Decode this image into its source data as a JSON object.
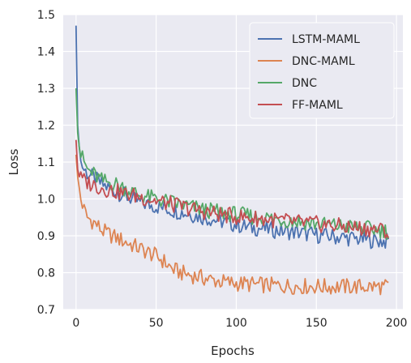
{
  "chart_data": {
    "type": "line",
    "xlabel": "Epochs",
    "ylabel": "Loss",
    "xlim": [
      -8,
      204
    ],
    "ylim": [
      0.7,
      1.5
    ],
    "xticks": [
      "0",
      "50",
      "100",
      "150",
      "200"
    ],
    "yticks": [
      "0.7",
      "0.8",
      "0.9",
      "1.0",
      "1.1",
      "1.2",
      "1.3",
      "1.4",
      "1.5"
    ],
    "grid": true,
    "legend_position": "top-right",
    "series": [
      {
        "name": "LSTM-MAML",
        "color": "#4c72b0",
        "x": [
          0,
          1,
          2,
          3,
          5,
          7,
          10,
          13,
          16,
          20,
          25,
          30,
          35,
          40,
          45,
          50,
          55,
          60,
          65,
          70,
          75,
          80,
          85,
          90,
          95,
          100,
          105,
          110,
          115,
          120,
          125,
          130,
          135,
          140,
          145,
          150,
          155,
          160,
          165,
          170,
          175,
          180,
          185,
          190,
          193,
          195
        ],
        "y": [
          1.47,
          1.2,
          1.14,
          1.1,
          1.08,
          1.07,
          1.06,
          1.05,
          1.04,
          1.03,
          1.02,
          1.01,
          1.0,
          0.99,
          0.985,
          0.98,
          0.975,
          0.97,
          0.965,
          0.96,
          0.955,
          0.95,
          0.945,
          0.94,
          0.935,
          0.93,
          0.925,
          0.922,
          0.92,
          0.918,
          0.915,
          0.912,
          0.91,
          0.908,
          0.905,
          0.902,
          0.9,
          0.898,
          0.896,
          0.894,
          0.892,
          0.89,
          0.888,
          0.886,
          0.885,
          0.885
        ]
      },
      {
        "name": "DNC-MAML",
        "color": "#dd8452",
        "x": [
          0,
          1,
          2,
          3,
          5,
          7,
          10,
          13,
          16,
          20,
          25,
          30,
          35,
          40,
          45,
          50,
          55,
          60,
          65,
          70,
          75,
          80,
          85,
          90,
          95,
          100,
          105,
          110,
          115,
          120,
          125,
          130,
          135,
          140,
          145,
          150,
          155,
          160,
          165,
          170,
          175,
          180,
          185,
          190,
          193,
          195
        ],
        "y": [
          1.12,
          1.06,
          1.03,
          1.0,
          0.97,
          0.95,
          0.94,
          0.93,
          0.915,
          0.905,
          0.895,
          0.885,
          0.875,
          0.865,
          0.855,
          0.845,
          0.83,
          0.81,
          0.8,
          0.795,
          0.79,
          0.785,
          0.78,
          0.776,
          0.773,
          0.771,
          0.77,
          0.768,
          0.767,
          0.766,
          0.765,
          0.764,
          0.764,
          0.763,
          0.763,
          0.763,
          0.762,
          0.762,
          0.762,
          0.762,
          0.762,
          0.762,
          0.762,
          0.762,
          0.761,
          0.76
        ]
      },
      {
        "name": "DNC",
        "color": "#55a868",
        "x": [
          0,
          1,
          2,
          3,
          5,
          7,
          10,
          13,
          16,
          20,
          25,
          30,
          35,
          40,
          45,
          50,
          55,
          60,
          65,
          70,
          75,
          80,
          85,
          90,
          95,
          100,
          105,
          110,
          115,
          120,
          125,
          130,
          135,
          140,
          145,
          150,
          155,
          160,
          165,
          170,
          175,
          180,
          185,
          190,
          193,
          195
        ],
        "y": [
          1.3,
          1.18,
          1.14,
          1.12,
          1.1,
          1.08,
          1.07,
          1.06,
          1.05,
          1.045,
          1.04,
          1.03,
          1.02,
          1.01,
          1.005,
          1.0,
          0.995,
          0.99,
          0.985,
          0.98,
          0.975,
          0.97,
          0.967,
          0.964,
          0.961,
          0.958,
          0.955,
          0.952,
          0.95,
          0.948,
          0.945,
          0.943,
          0.94,
          0.938,
          0.935,
          0.933,
          0.93,
          0.928,
          0.926,
          0.924,
          0.922,
          0.92,
          0.918,
          0.916,
          0.915,
          0.91
        ]
      },
      {
        "name": "FF-MAML",
        "color": "#c44e52",
        "x": [
          0,
          1,
          2,
          3,
          5,
          7,
          10,
          13,
          16,
          20,
          25,
          30,
          35,
          40,
          45,
          50,
          55,
          60,
          65,
          70,
          75,
          80,
          85,
          90,
          95,
          100,
          105,
          110,
          115,
          120,
          125,
          130,
          135,
          140,
          145,
          150,
          155,
          160,
          165,
          170,
          175,
          180,
          185,
          190,
          193,
          195
        ],
        "y": [
          1.16,
          1.08,
          1.06,
          1.055,
          1.05,
          1.045,
          1.04,
          1.035,
          1.03,
          1.025,
          1.02,
          1.015,
          1.01,
          1.005,
          1.0,
          0.995,
          0.99,
          0.985,
          0.98,
          0.975,
          0.97,
          0.966,
          0.962,
          0.958,
          0.955,
          0.952,
          0.95,
          0.948,
          0.946,
          0.944,
          0.942,
          0.94,
          0.938,
          0.936,
          0.934,
          0.932,
          0.93,
          0.928,
          0.926,
          0.924,
          0.922,
          0.92,
          0.918,
          0.916,
          0.915,
          0.9
        ]
      }
    ]
  }
}
